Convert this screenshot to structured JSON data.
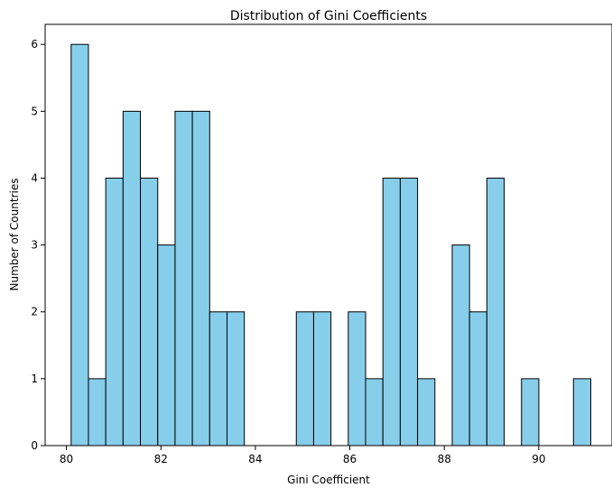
{
  "chart_data": {
    "type": "bar",
    "title": "Distribution of Gini Coefficients",
    "xlabel": "Gini Coefficient",
    "ylabel": "Number of Countries",
    "xlim": [
      79.55,
      91.55
    ],
    "ylim": [
      0,
      6.3
    ],
    "xticks": [
      80,
      82,
      84,
      86,
      88,
      90
    ],
    "yticks": [
      0,
      1,
      2,
      3,
      4,
      5,
      6
    ],
    "bin_start": 80.1,
    "bin_width": 0.3667,
    "values": [
      6,
      1,
      4,
      5,
      4,
      3,
      5,
      5,
      2,
      2,
      0,
      0,
      0,
      2,
      2,
      0,
      2,
      1,
      4,
      4,
      1,
      0,
      3,
      2,
      4,
      0,
      1,
      0,
      0,
      1
    ],
    "bar_color": "#87ceeb",
    "edge_color": "#000000",
    "grid": false,
    "legend": "none"
  }
}
